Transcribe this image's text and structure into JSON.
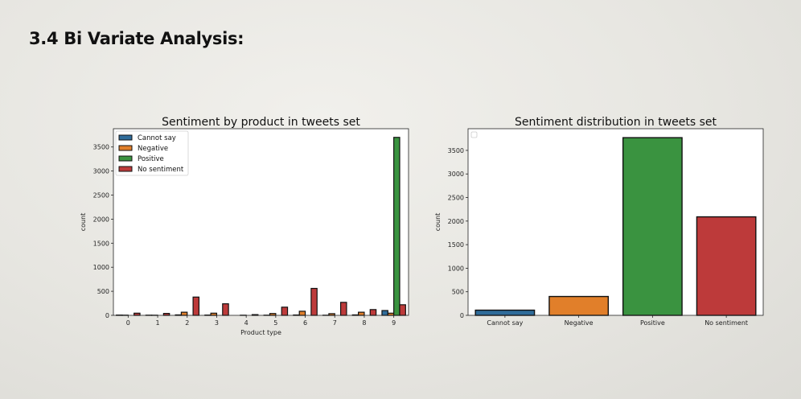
{
  "slide": {
    "title": "3.4 Bi Variate Analysis:"
  },
  "colors": {
    "Cannot say": "#2f6c9a",
    "Negative": "#e17f2a",
    "Positive": "#3a9340",
    "No sentiment": "#bd3a3a"
  },
  "chart_data": [
    {
      "type": "bar",
      "title": "Sentiment by product in tweets set",
      "xlabel": "Product type",
      "ylabel": "count",
      "categories": [
        "0",
        "1",
        "2",
        "3",
        "4",
        "5",
        "6",
        "7",
        "8",
        "9"
      ],
      "ylim": [
        0,
        3880
      ],
      "yticks": [
        0,
        500,
        1000,
        1500,
        2000,
        2500,
        3000,
        3500
      ],
      "legend": "top-left",
      "series": [
        {
          "name": "Cannot say",
          "values": [
            6,
            4,
            10,
            6,
            0,
            4,
            8,
            3,
            10,
            100
          ]
        },
        {
          "name": "Negative",
          "values": [
            4,
            3,
            65,
            45,
            3,
            38,
            85,
            35,
            65,
            45
          ]
        },
        {
          "name": "Positive",
          "values": [
            0,
            0,
            0,
            0,
            0,
            0,
            0,
            0,
            0,
            3700
          ]
        },
        {
          "name": "No sentiment",
          "values": [
            45,
            40,
            380,
            240,
            15,
            170,
            560,
            270,
            120,
            220
          ]
        }
      ]
    },
    {
      "type": "bar",
      "title": "Sentiment distribution in tweets set",
      "xlabel": "",
      "ylabel": "count",
      "categories": [
        "Cannot say",
        "Negative",
        "Positive",
        "No sentiment"
      ],
      "values": [
        110,
        400,
        3770,
        2090
      ],
      "ylim": [
        0,
        3960
      ],
      "yticks": [
        0,
        500,
        1000,
        1500,
        2000,
        2500,
        3000,
        3500
      ],
      "legend": "top-left (empty)"
    }
  ]
}
